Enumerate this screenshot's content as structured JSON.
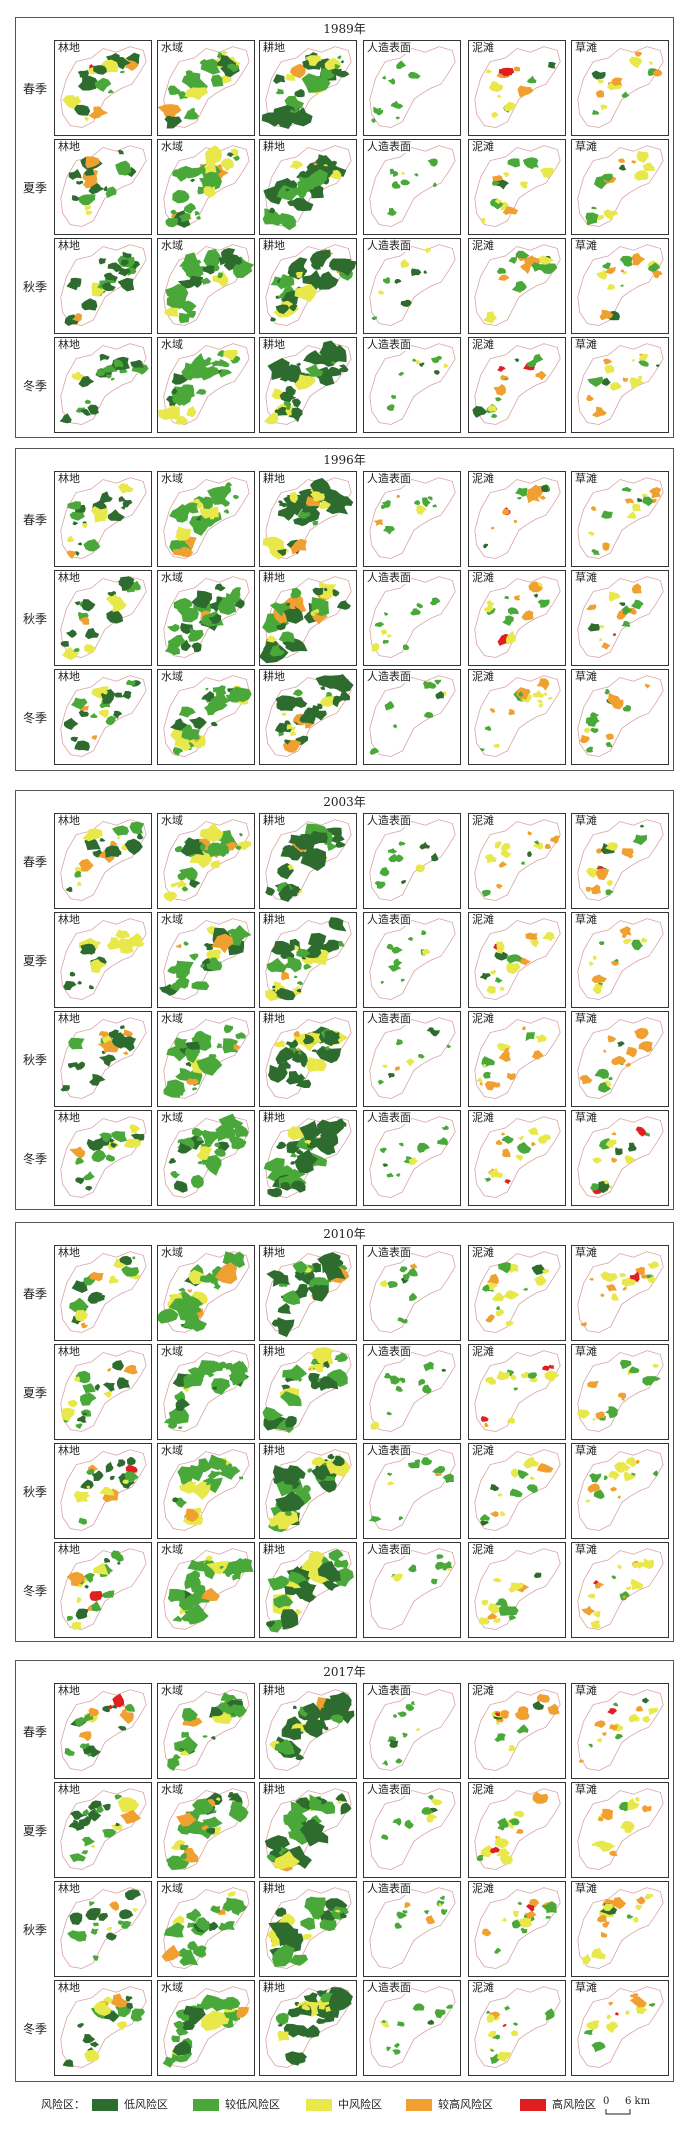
{
  "years": [
    "1989年",
    "1996年",
    "2003年",
    "2010年",
    "2017年"
  ],
  "seasons": {
    "spring": "春季",
    "summer": "夏季",
    "autumn": "秋季",
    "winter": "冬季"
  },
  "land_types": [
    "林地",
    "水域",
    "耕地",
    "人造表面",
    "泥滩",
    "草滩"
  ],
  "legend": {
    "prefix": "风险区：",
    "classes": [
      {
        "label": "低风险区",
        "color": "#2e6b2e"
      },
      {
        "label": "较低风险区",
        "color": "#4aa83a"
      },
      {
        "label": "中风险区",
        "color": "#e8e84a"
      },
      {
        "label": "较高风险区",
        "color": "#f0a030"
      },
      {
        "label": "高风险区",
        "color": "#e02020"
      }
    ],
    "scale_zero": "0",
    "scale_label": "6 km"
  },
  "boundary_color": "#d9a0a0"
}
